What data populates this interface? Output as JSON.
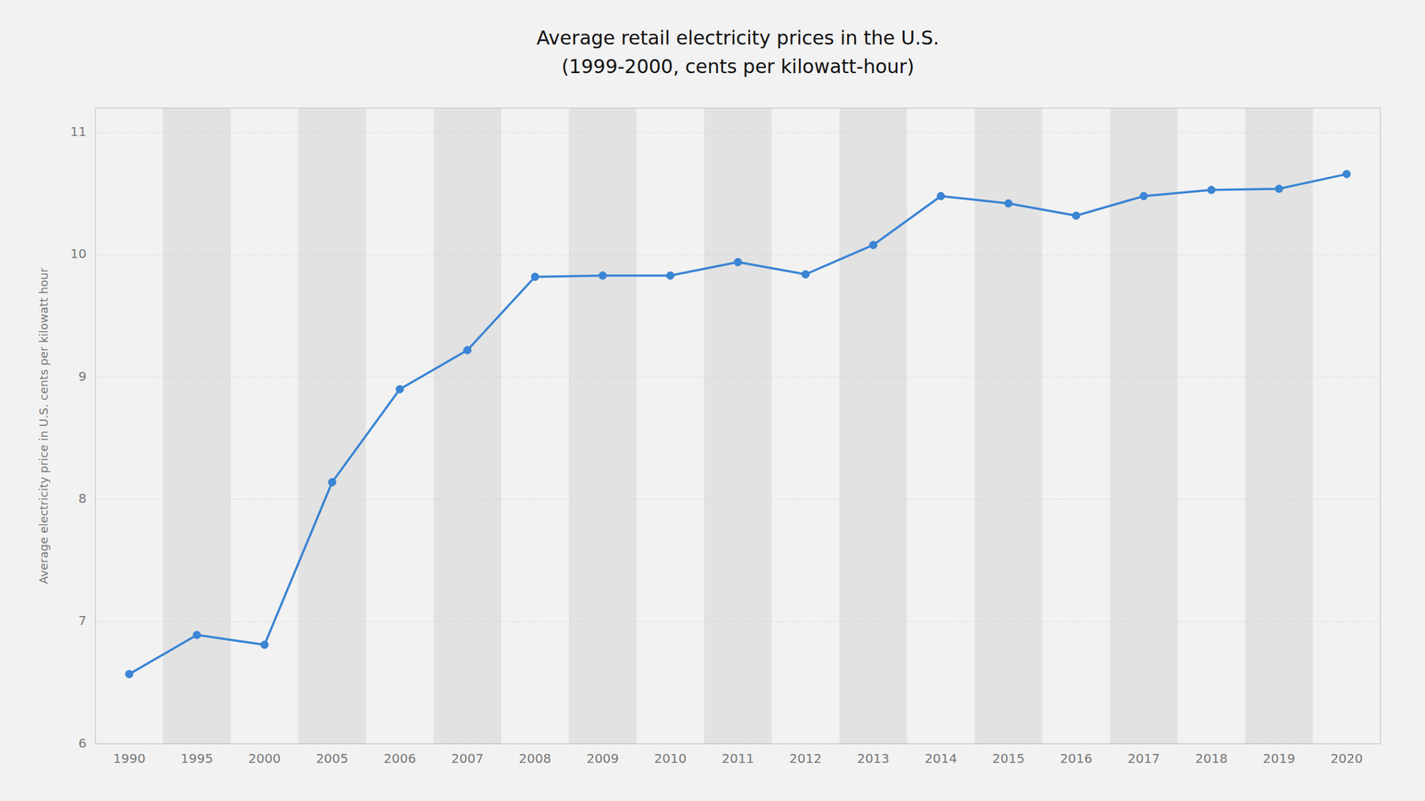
{
  "chart_data": {
    "type": "line",
    "title": "Average retail electricity prices in the U.S.",
    "subtitle": "(1999-2000, cents per kilowatt-hour)",
    "y_label": "Average electricity price in U.S. cents per kilowatt hour",
    "categories": [
      "1990",
      "1995",
      "2000",
      "2005",
      "2006",
      "2007",
      "2008",
      "2009",
      "2010",
      "2011",
      "2012",
      "2013",
      "2014",
      "2015",
      "2016",
      "2017",
      "2018",
      "2019",
      "2020"
    ],
    "values": [
      6.57,
      6.89,
      6.81,
      8.14,
      8.9,
      9.22,
      9.82,
      9.83,
      9.83,
      9.94,
      9.84,
      10.08,
      10.48,
      10.42,
      10.32,
      10.48,
      10.53,
      10.54,
      10.66
    ],
    "color": "#3a85d4",
    "marker": "circle",
    "ylim": [
      6.0,
      11.2
    ],
    "yticks": [
      6,
      7,
      8,
      9,
      10,
      11
    ],
    "grid": true
  }
}
